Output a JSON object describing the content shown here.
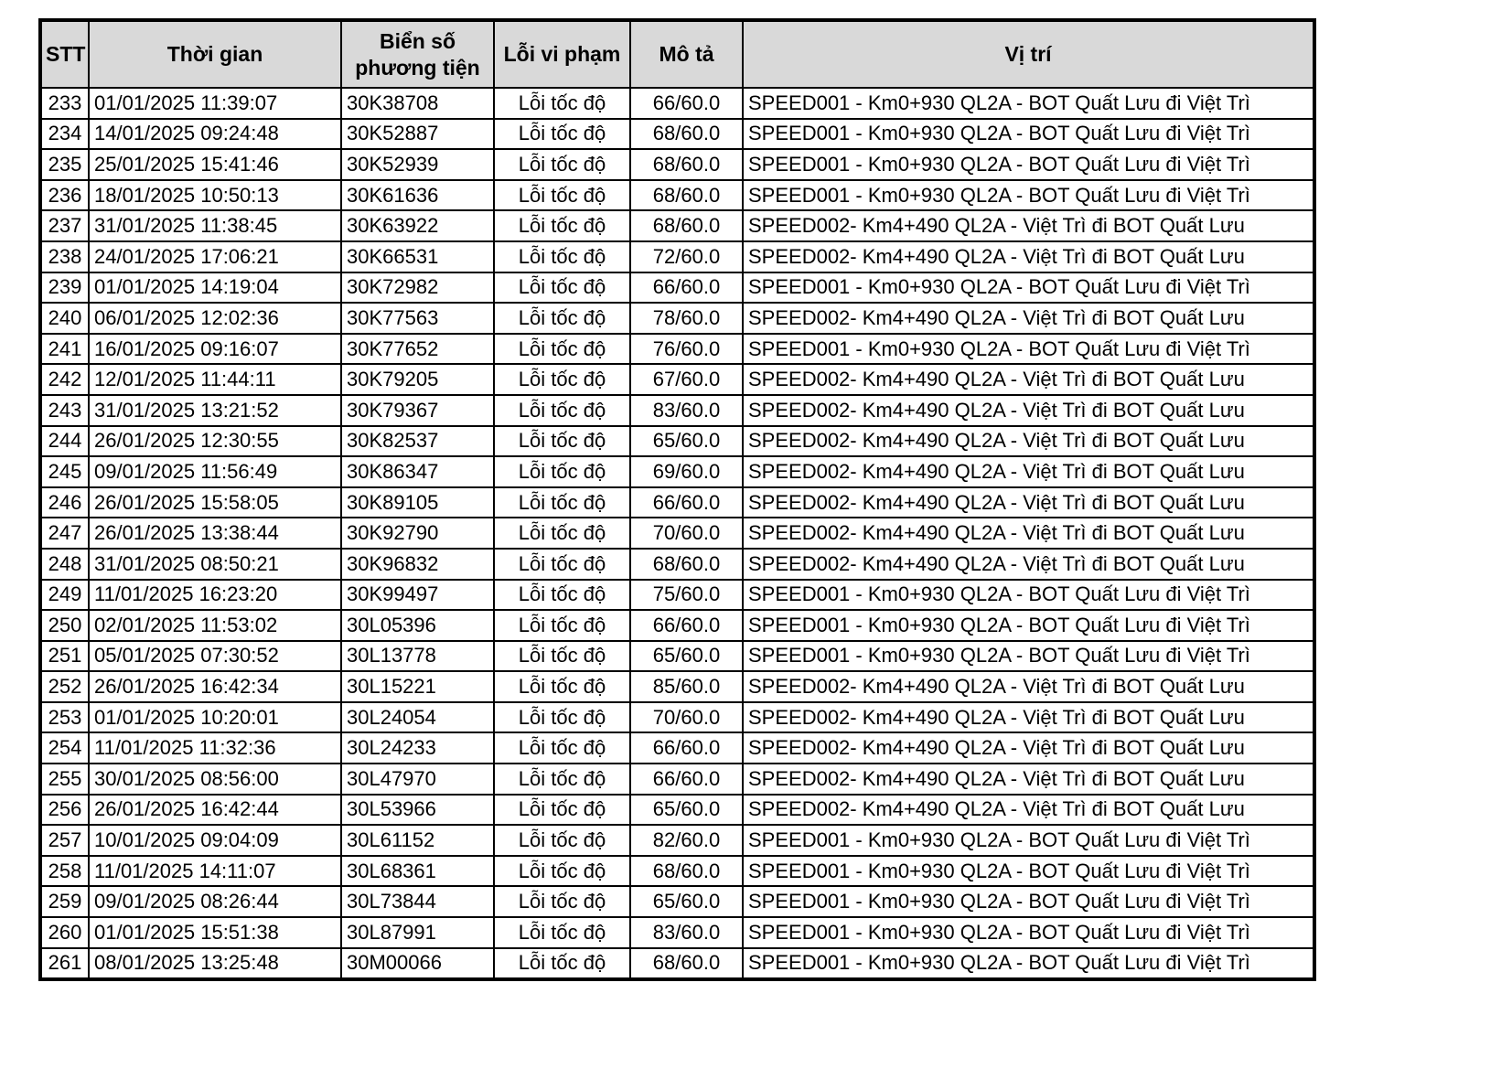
{
  "colors": {
    "header_background": "#d9d9d9",
    "row_background": "#ffffff",
    "border": "#000000",
    "text": "#000000"
  },
  "table": {
    "columns": [
      {
        "key": "stt",
        "label": "STT"
      },
      {
        "key": "time",
        "label": "Thời gian"
      },
      {
        "key": "plate",
        "label": "Biển số phương tiện"
      },
      {
        "key": "violation",
        "label": "Lỗi vi phạm"
      },
      {
        "key": "description",
        "label": "Mô tả"
      },
      {
        "key": "location",
        "label": "Vị trí"
      }
    ],
    "rows": [
      [
        "233",
        "01/01/2025 11:39:07",
        "30K38708",
        "Lỗi tốc độ",
        "66/60.0",
        "SPEED001 - Km0+930 QL2A - BOT Quất Lưu đi Việt Trì"
      ],
      [
        "234",
        "14/01/2025 09:24:48",
        "30K52887",
        "Lỗi tốc độ",
        "68/60.0",
        "SPEED001 - Km0+930 QL2A - BOT Quất Lưu đi Việt Trì"
      ],
      [
        "235",
        "25/01/2025 15:41:46",
        "30K52939",
        "Lỗi tốc độ",
        "68/60.0",
        "SPEED001 - Km0+930 QL2A - BOT Quất Lưu đi Việt Trì"
      ],
      [
        "236",
        "18/01/2025 10:50:13",
        "30K61636",
        "Lỗi tốc độ",
        "68/60.0",
        "SPEED001 - Km0+930 QL2A - BOT Quất Lưu đi Việt Trì"
      ],
      [
        "237",
        "31/01/2025 11:38:45",
        "30K63922",
        "Lỗi tốc độ",
        "68/60.0",
        "SPEED002- Km4+490 QL2A - Việt Trì đi BOT Quất Lưu"
      ],
      [
        "238",
        "24/01/2025 17:06:21",
        "30K66531",
        "Lỗi tốc độ",
        "72/60.0",
        "SPEED002- Km4+490 QL2A - Việt Trì đi BOT Quất Lưu"
      ],
      [
        "239",
        "01/01/2025 14:19:04",
        "30K72982",
        "Lỗi tốc độ",
        "66/60.0",
        "SPEED001 - Km0+930 QL2A - BOT Quất Lưu đi Việt Trì"
      ],
      [
        "240",
        "06/01/2025 12:02:36",
        "30K77563",
        "Lỗi tốc độ",
        "78/60.0",
        "SPEED002- Km4+490 QL2A - Việt Trì đi BOT Quất Lưu"
      ],
      [
        "241",
        "16/01/2025 09:16:07",
        "30K77652",
        "Lỗi tốc độ",
        "76/60.0",
        "SPEED001 - Km0+930 QL2A - BOT Quất Lưu đi Việt Trì"
      ],
      [
        "242",
        "12/01/2025 11:44:11",
        "30K79205",
        "Lỗi tốc độ",
        "67/60.0",
        "SPEED002- Km4+490 QL2A - Việt Trì đi BOT Quất Lưu"
      ],
      [
        "243",
        "31/01/2025 13:21:52",
        "30K79367",
        "Lỗi tốc độ",
        "83/60.0",
        "SPEED002- Km4+490 QL2A - Việt Trì đi BOT Quất Lưu"
      ],
      [
        "244",
        "26/01/2025 12:30:55",
        "30K82537",
        "Lỗi tốc độ",
        "65/60.0",
        "SPEED002- Km4+490 QL2A - Việt Trì đi BOT Quất Lưu"
      ],
      [
        "245",
        "09/01/2025 11:56:49",
        "30K86347",
        "Lỗi tốc độ",
        "69/60.0",
        "SPEED002- Km4+490 QL2A - Việt Trì đi BOT Quất Lưu"
      ],
      [
        "246",
        "26/01/2025 15:58:05",
        "30K89105",
        "Lỗi tốc độ",
        "66/60.0",
        "SPEED002- Km4+490 QL2A - Việt Trì đi BOT Quất Lưu"
      ],
      [
        "247",
        "26/01/2025 13:38:44",
        "30K92790",
        "Lỗi tốc độ",
        "70/60.0",
        "SPEED002- Km4+490 QL2A - Việt Trì đi BOT Quất Lưu"
      ],
      [
        "248",
        "31/01/2025 08:50:21",
        "30K96832",
        "Lỗi tốc độ",
        "68/60.0",
        "SPEED002- Km4+490 QL2A - Việt Trì đi BOT Quất Lưu"
      ],
      [
        "249",
        "11/01/2025 16:23:20",
        "30K99497",
        "Lỗi tốc độ",
        "75/60.0",
        "SPEED001 - Km0+930 QL2A - BOT Quất Lưu đi Việt Trì"
      ],
      [
        "250",
        "02/01/2025 11:53:02",
        "30L05396",
        "Lỗi tốc độ",
        "66/60.0",
        "SPEED001 - Km0+930 QL2A - BOT Quất Lưu đi Việt Trì"
      ],
      [
        "251",
        "05/01/2025 07:30:52",
        "30L13778",
        "Lỗi tốc độ",
        "65/60.0",
        "SPEED001 - Km0+930 QL2A - BOT Quất Lưu đi Việt Trì"
      ],
      [
        "252",
        "26/01/2025 16:42:34",
        "30L15221",
        "Lỗi tốc độ",
        "85/60.0",
        "SPEED002- Km4+490 QL2A - Việt Trì đi BOT Quất Lưu"
      ],
      [
        "253",
        "01/01/2025 10:20:01",
        "30L24054",
        "Lỗi tốc độ",
        "70/60.0",
        "SPEED002- Km4+490 QL2A - Việt Trì đi BOT Quất Lưu"
      ],
      [
        "254",
        "11/01/2025 11:32:36",
        "30L24233",
        "Lỗi tốc độ",
        "66/60.0",
        "SPEED002- Km4+490 QL2A - Việt Trì đi BOT Quất Lưu"
      ],
      [
        "255",
        "30/01/2025 08:56:00",
        "30L47970",
        "Lỗi tốc độ",
        "66/60.0",
        "SPEED002- Km4+490 QL2A - Việt Trì đi BOT Quất Lưu"
      ],
      [
        "256",
        "26/01/2025 16:42:44",
        "30L53966",
        "Lỗi tốc độ",
        "65/60.0",
        "SPEED002- Km4+490 QL2A - Việt Trì đi BOT Quất Lưu"
      ],
      [
        "257",
        "10/01/2025 09:04:09",
        "30L61152",
        "Lỗi tốc độ",
        "82/60.0",
        "SPEED001 - Km0+930 QL2A - BOT Quất Lưu đi Việt Trì"
      ],
      [
        "258",
        "11/01/2025 14:11:07",
        "30L68361",
        "Lỗi tốc độ",
        "68/60.0",
        "SPEED001 - Km0+930 QL2A - BOT Quất Lưu đi Việt Trì"
      ],
      [
        "259",
        "09/01/2025 08:26:44",
        "30L73844",
        "Lỗi tốc độ",
        "65/60.0",
        "SPEED001 - Km0+930 QL2A - BOT Quất Lưu đi Việt Trì"
      ],
      [
        "260",
        "01/01/2025 15:51:38",
        "30L87991",
        "Lỗi tốc độ",
        "83/60.0",
        "SPEED001 - Km0+930 QL2A - BOT Quất Lưu đi Việt Trì"
      ],
      [
        "261",
        "08/01/2025 13:25:48",
        "30M00066",
        "Lỗi tốc độ",
        "68/60.0",
        "SPEED001 - Km0+930 QL2A - BOT Quất Lưu đi Việt Trì"
      ]
    ]
  }
}
